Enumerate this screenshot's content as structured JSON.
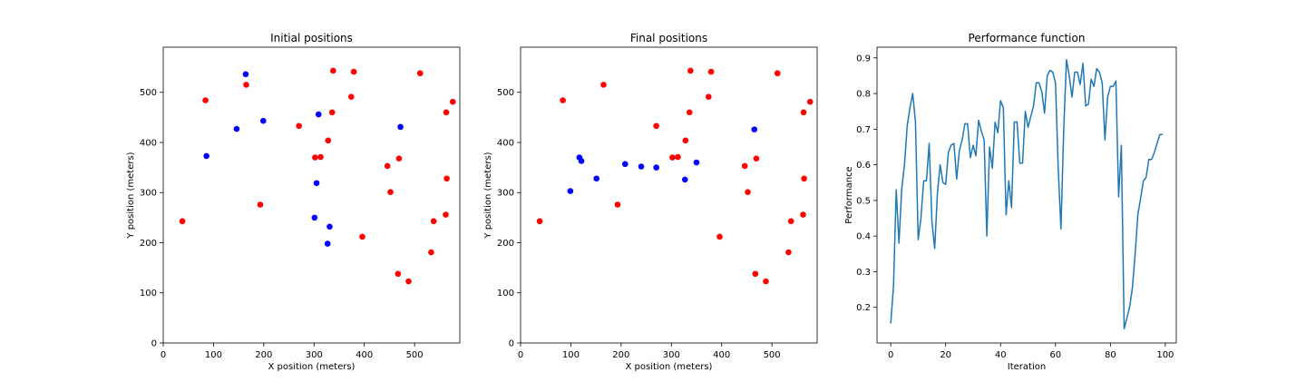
{
  "colors": {
    "sensor": "#0000ff",
    "target": "#ff0000",
    "line": "#1f77b4",
    "axis": "#000000"
  },
  "chart_data": [
    {
      "type": "scatter",
      "title": "Initial positions",
      "xlabel": "X position (meters)",
      "ylabel": "Y position (meters)",
      "xlim": [
        0,
        590
      ],
      "ylim": [
        0,
        590
      ],
      "xticks": [
        0,
        100,
        200,
        300,
        400,
        500
      ],
      "yticks": [
        0,
        100,
        200,
        300,
        400,
        500
      ],
      "series": [
        {
          "color": "#0000ff",
          "x": [
            164,
            146,
            199,
            86,
            309,
            472,
            305,
            301,
            331,
            327
          ],
          "y": [
            536,
            427,
            443,
            373,
            456,
            431,
            319,
            250,
            232,
            198
          ]
        },
        {
          "color": "#ff0000",
          "x": [
            84,
            165,
            338,
            379,
            511,
            374,
            336,
            576,
            563,
            270,
            328,
            302,
            313,
            446,
            469,
            452,
            564,
            538,
            562,
            193,
            38,
            396,
            533,
            467,
            488
          ],
          "y": [
            484,
            515,
            543,
            541,
            538,
            491,
            460,
            481,
            460,
            433,
            404,
            370,
            371,
            353,
            368,
            301,
            328,
            243,
            256,
            276,
            243,
            212,
            181,
            138,
            123
          ]
        }
      ]
    },
    {
      "type": "scatter",
      "title": "Final positions",
      "xlabel": "X position (meters)",
      "ylabel": "Y position (meters)",
      "xlim": [
        0,
        590
      ],
      "ylim": [
        0,
        590
      ],
      "xticks": [
        0,
        100,
        200,
        300,
        400,
        500
      ],
      "yticks": [
        0,
        100,
        200,
        300,
        400,
        500
      ],
      "series": [
        {
          "color": "#0000ff",
          "x": [
            465,
            117,
            121,
            208,
            240,
            270,
            350,
            151,
            99,
            327
          ],
          "y": [
            426,
            370,
            363,
            357,
            352,
            350,
            360,
            328,
            303,
            326
          ]
        },
        {
          "color": "#ff0000",
          "x": [
            84,
            165,
            338,
            379,
            511,
            374,
            336,
            576,
            563,
            270,
            328,
            302,
            313,
            446,
            469,
            452,
            564,
            538,
            562,
            193,
            38,
            396,
            533,
            467,
            488
          ],
          "y": [
            484,
            515,
            543,
            541,
            538,
            491,
            460,
            481,
            460,
            433,
            404,
            370,
            371,
            353,
            368,
            301,
            328,
            243,
            256,
            276,
            243,
            212,
            181,
            138,
            123
          ]
        }
      ]
    },
    {
      "type": "line",
      "title": "Performance function",
      "xlabel": "Iteration",
      "ylabel": "Performance",
      "xlim": [
        -5,
        104
      ],
      "ylim": [
        0.1,
        0.93
      ],
      "xticks": [
        0,
        20,
        40,
        60,
        80,
        100
      ],
      "yticks": [
        0.2,
        0.3,
        0.4,
        0.5,
        0.6,
        0.7,
        0.8,
        0.9
      ],
      "series": [
        {
          "color": "#1f77b4",
          "x": [
            0,
            1,
            2,
            3,
            4,
            5,
            6,
            7,
            8,
            9,
            10,
            11,
            12,
            13,
            14,
            15,
            16,
            17,
            18,
            19,
            20,
            21,
            22,
            23,
            24,
            25,
            26,
            27,
            28,
            29,
            30,
            31,
            32,
            33,
            34,
            35,
            36,
            37,
            38,
            39,
            40,
            41,
            42,
            43,
            44,
            45,
            46,
            47,
            48,
            49,
            50,
            51,
            52,
            53,
            54,
            55,
            56,
            57,
            58,
            59,
            60,
            61,
            62,
            63,
            64,
            65,
            66,
            67,
            68,
            69,
            70,
            71,
            72,
            73,
            74,
            75,
            76,
            77,
            78,
            79,
            80,
            81,
            82,
            83,
            84,
            85,
            86,
            87,
            88,
            89,
            90,
            91,
            92,
            93,
            94,
            95,
            96,
            97,
            98,
            99
          ],
          "y": [
            0.155,
            0.26,
            0.53,
            0.38,
            0.53,
            0.6,
            0.71,
            0.76,
            0.8,
            0.72,
            0.39,
            0.45,
            0.555,
            0.555,
            0.66,
            0.44,
            0.365,
            0.52,
            0.6,
            0.55,
            0.545,
            0.635,
            0.655,
            0.66,
            0.56,
            0.64,
            0.67,
            0.715,
            0.715,
            0.62,
            0.655,
            0.625,
            0.725,
            0.695,
            0.67,
            0.4,
            0.65,
            0.59,
            0.72,
            0.69,
            0.78,
            0.76,
            0.46,
            0.555,
            0.48,
            0.72,
            0.72,
            0.605,
            0.605,
            0.75,
            0.705,
            0.735,
            0.765,
            0.83,
            0.83,
            0.805,
            0.745,
            0.85,
            0.865,
            0.86,
            0.83,
            0.59,
            0.42,
            0.7,
            0.895,
            0.85,
            0.79,
            0.86,
            0.86,
            0.825,
            0.885,
            0.765,
            0.77,
            0.84,
            0.82,
            0.87,
            0.86,
            0.83,
            0.67,
            0.79,
            0.82,
            0.82,
            0.835,
            0.51,
            0.655,
            0.14,
            0.17,
            0.2,
            0.255,
            0.35,
            0.46,
            0.505,
            0.555,
            0.565,
            0.615,
            0.615,
            0.635,
            0.66,
            0.685,
            0.685
          ]
        }
      ]
    }
  ]
}
